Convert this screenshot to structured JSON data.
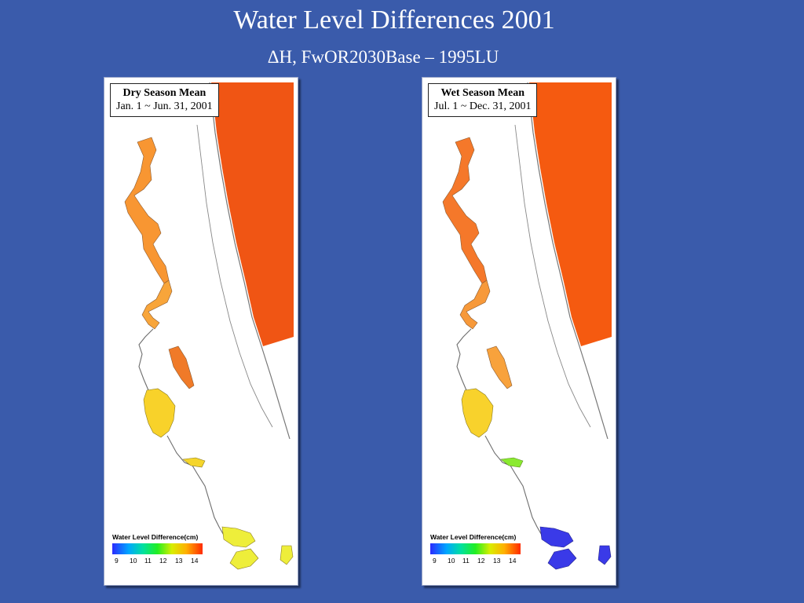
{
  "header": {
    "title": "Water Level Differences 2001",
    "subtitle": "ΔH, FwOR2030Base – 1995LU"
  },
  "panels": [
    {
      "label_title": "Dry Season Mean",
      "label_period": "Jan. 1 ~ Jun. 31, 2001",
      "legend_title": "Water Level Difference(cm)",
      "legend_ticks": [
        "9",
        "10",
        "11",
        "12",
        "13",
        "14"
      ],
      "colors": {
        "ocean": "#f05514",
        "river_upper": "#f89632",
        "river_mid": "#f8a53a",
        "side_lake": "#f07a28",
        "lake_george": "#f8d22a",
        "south_reach": "#f5d52c",
        "south_lakes": "#eeee3a"
      }
    },
    {
      "label_title": "Wet Season Mean",
      "label_period": "Jul. 1 ~ Dec. 31, 2001",
      "legend_title": "Water Level Difference(cm)",
      "legend_ticks": [
        "9",
        "10",
        "11",
        "12",
        "13",
        "14"
      ],
      "colors": {
        "ocean": "#f55a10",
        "river_upper": "#f5782a",
        "river_mid": "#f7993a",
        "side_lake": "#f8a23c",
        "lake_george": "#f8d22c",
        "south_reach": "#8aea30",
        "south_lakes": "#3a3ae8"
      }
    }
  ]
}
